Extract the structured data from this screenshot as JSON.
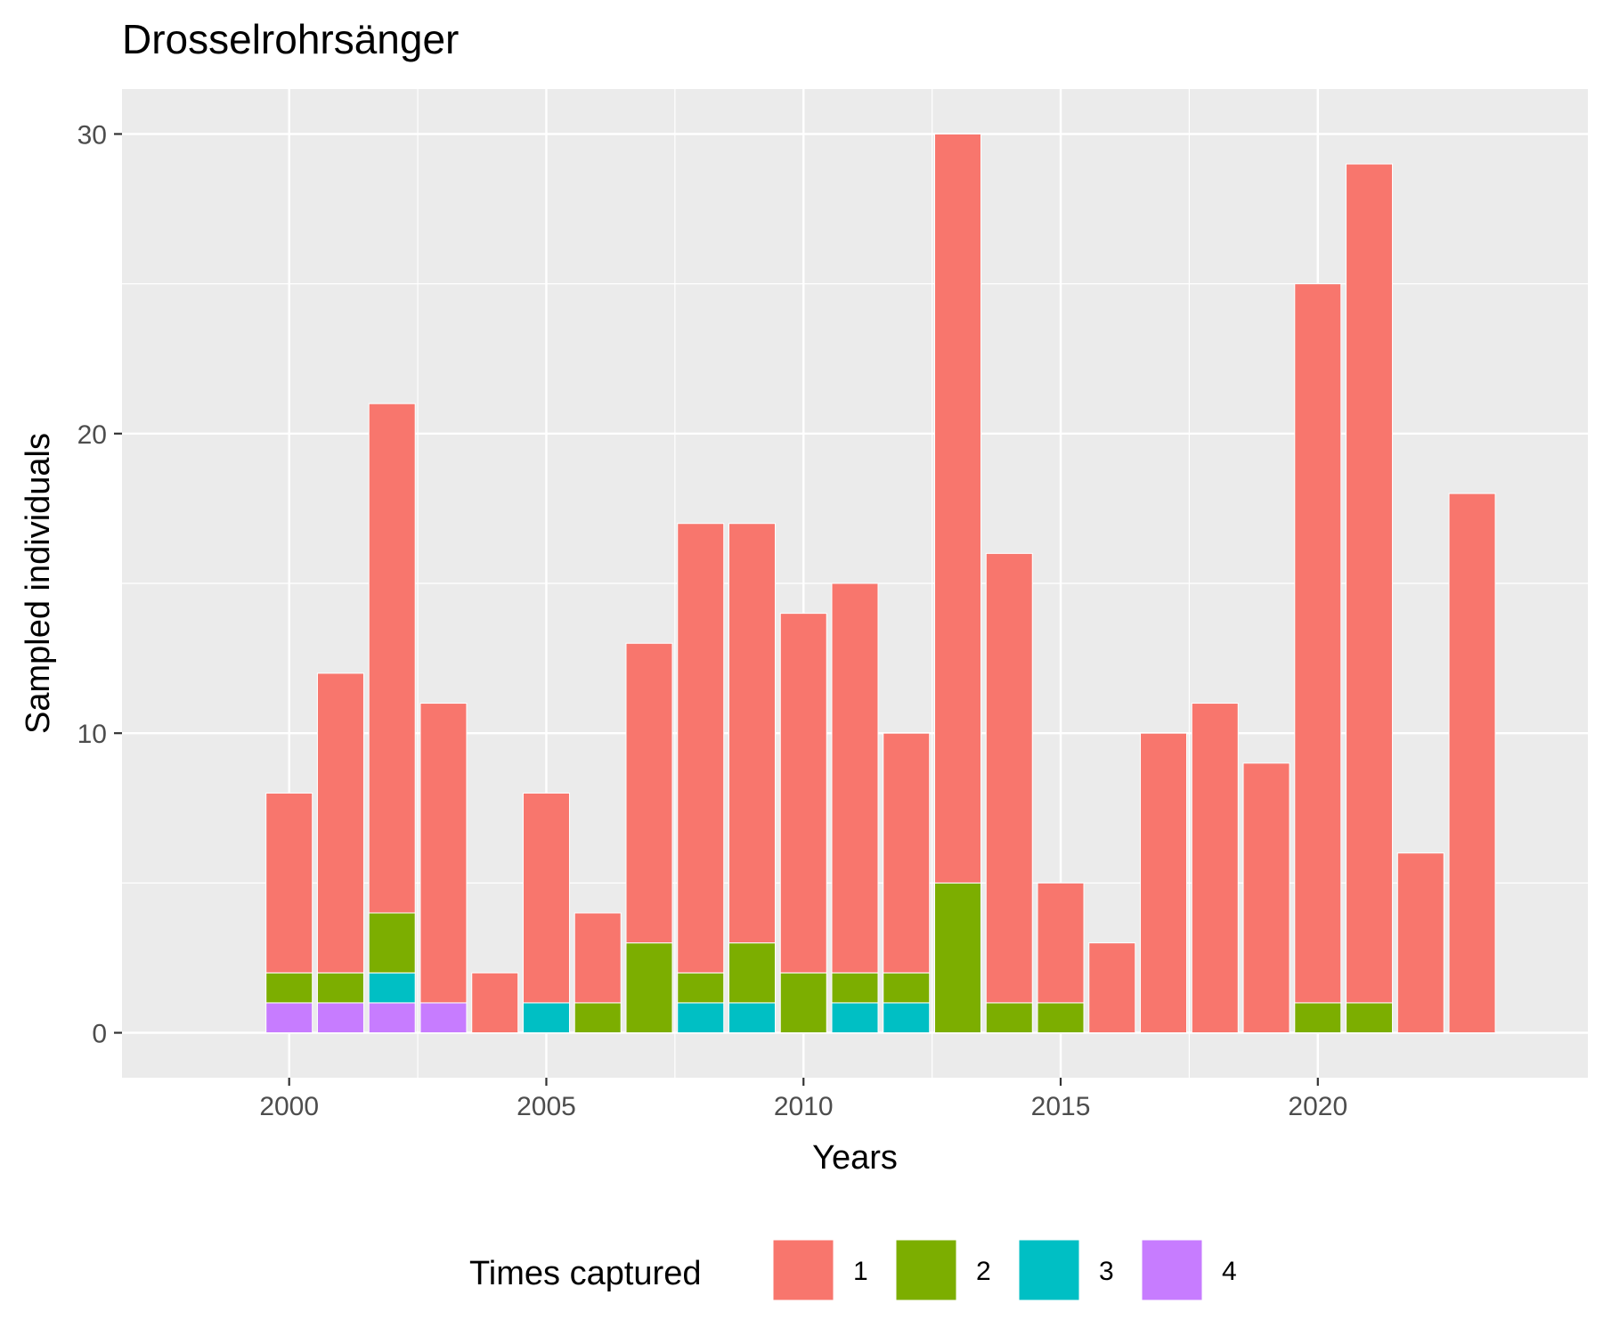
{
  "chart_data": {
    "type": "bar",
    "stacked": true,
    "title": "Drosselrohrsänger",
    "xlabel": "Years",
    "ylabel": "Sampled individuals",
    "xlim": [
      1996.75,
      2025.25
    ],
    "ylim": [
      -1.5,
      31.5
    ],
    "x_ticks": [
      2000,
      2005,
      2010,
      2015,
      2020
    ],
    "y_ticks": [
      0,
      10,
      20,
      30
    ],
    "grid": true,
    "background": "#ebebeb",
    "legend": {
      "title": "Times captured",
      "position": "bottom"
    },
    "categories": [
      2000,
      2001,
      2002,
      2003,
      2004,
      2005,
      2006,
      2007,
      2008,
      2009,
      2010,
      2011,
      2012,
      2013,
      2014,
      2015,
      2016,
      2017,
      2018,
      2019,
      2020,
      2021,
      2022,
      2023
    ],
    "series": [
      {
        "name": "1",
        "color": "#f8766d",
        "values": [
          6,
          10,
          17,
          10,
          2,
          7,
          3,
          10,
          15,
          14,
          12,
          13,
          8,
          25,
          15,
          4,
          3,
          10,
          11,
          9,
          24,
          28,
          6,
          18
        ]
      },
      {
        "name": "2",
        "color": "#7cae00",
        "values": [
          1,
          1,
          2,
          0,
          0,
          0,
          1,
          3,
          1,
          2,
          2,
          1,
          1,
          5,
          1,
          1,
          0,
          0,
          0,
          0,
          1,
          1,
          0,
          0
        ]
      },
      {
        "name": "3",
        "color": "#00bfc4",
        "values": [
          0,
          0,
          1,
          0,
          0,
          1,
          0,
          0,
          1,
          1,
          0,
          1,
          1,
          0,
          0,
          0,
          0,
          0,
          0,
          0,
          0,
          0,
          0,
          0
        ]
      },
      {
        "name": "4",
        "color": "#c77cff",
        "values": [
          1,
          1,
          1,
          1,
          0,
          0,
          0,
          0,
          0,
          0,
          0,
          0,
          0,
          0,
          0,
          0,
          0,
          0,
          0,
          0,
          0,
          0,
          0,
          0
        ]
      }
    ]
  }
}
